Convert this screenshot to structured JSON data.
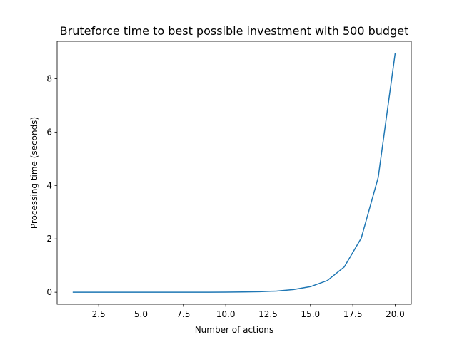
{
  "chart_data": {
    "type": "line",
    "title": "Bruteforce time to best possible investment with 500 budget",
    "xlabel": "Number of actions",
    "ylabel": "Processing time (seconds)",
    "xlim": [
      0.05,
      20.95
    ],
    "ylim": [
      -0.45,
      9.4
    ],
    "xticks": [
      2.5,
      5.0,
      7.5,
      10.0,
      12.5,
      15.0,
      17.5,
      20.0
    ],
    "xtick_labels": [
      "2.5",
      "5.0",
      "7.5",
      "10.0",
      "12.5",
      "15.0",
      "17.5",
      "20.0"
    ],
    "yticks": [
      0,
      2,
      4,
      6,
      8
    ],
    "ytick_labels": [
      "0",
      "2",
      "4",
      "6",
      "8"
    ],
    "grid": false,
    "series": [
      {
        "color": "#1f77b4",
        "x": [
          1,
          2,
          3,
          4,
          5,
          6,
          7,
          8,
          9,
          10,
          11,
          12,
          13,
          14,
          15,
          16,
          17,
          18,
          19,
          20
        ],
        "values": [
          0.0,
          0.0,
          0.0,
          0.0,
          0.0,
          0.0,
          0.0,
          0.0,
          0.001,
          0.005,
          0.01,
          0.02,
          0.045,
          0.1,
          0.21,
          0.44,
          0.95,
          2.03,
          4.3,
          8.95
        ]
      }
    ]
  }
}
